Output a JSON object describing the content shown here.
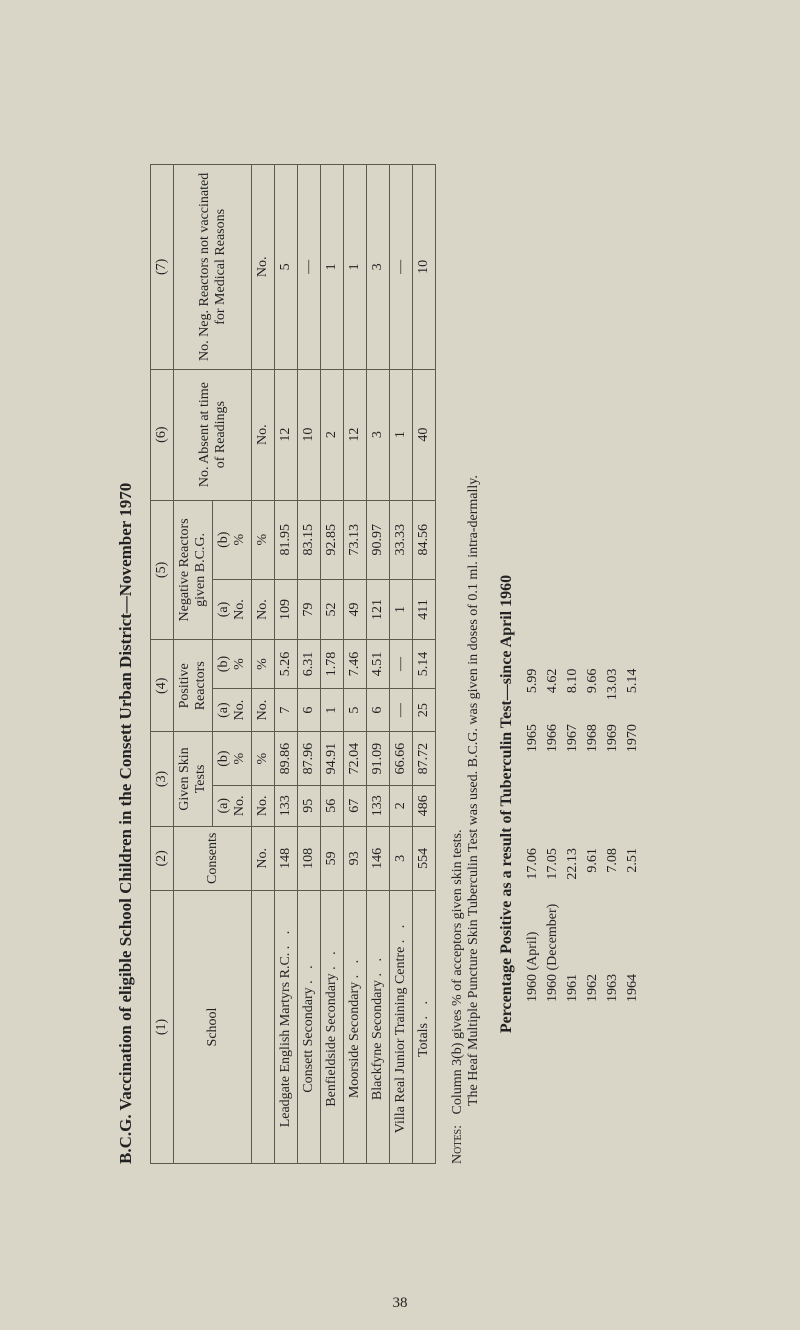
{
  "title": "B.C.G. Vaccination of eligible School Children in the Consett Urban District—November 1970",
  "headers": {
    "c1": "(1)",
    "c2": "(2)",
    "c3": "(3)",
    "c4": "(4)",
    "c5": "(5)",
    "c6": "(6)",
    "c7": "(7)",
    "school": "School",
    "consents": "Consents",
    "given": "Given Skin Tests",
    "pos": "Positive Reactors",
    "neg": "Negative Reactors given B.C.G.",
    "absent": "No. Absent at time of Readings",
    "negreact": "No. Neg. Reactors not vaccinated for Medical Reasons",
    "no": "No.",
    "pct": "%",
    "a": "(a)",
    "b": "(b)"
  },
  "rows": [
    {
      "school": "Leadgate English Martyrs R.C.",
      "consents": "148",
      "ga": "133",
      "gb": "89.86",
      "pa": "7",
      "pb": "5.26",
      "na": "109",
      "nb": "81.95",
      "abs": "12",
      "nr": "5"
    },
    {
      "school": "Consett Secondary",
      "consents": "108",
      "ga": "95",
      "gb": "87.96",
      "pa": "6",
      "pb": "6.31",
      "na": "79",
      "nb": "83.15",
      "abs": "10",
      "nr": "—"
    },
    {
      "school": "Benfieldside Secondary",
      "consents": "59",
      "ga": "56",
      "gb": "94.91",
      "pa": "1",
      "pb": "1.78",
      "na": "52",
      "nb": "92.85",
      "abs": "2",
      "nr": "1"
    },
    {
      "school": "Moorside Secondary",
      "consents": "93",
      "ga": "67",
      "gb": "72.04",
      "pa": "5",
      "pb": "7.46",
      "na": "49",
      "nb": "73.13",
      "abs": "12",
      "nr": "1"
    },
    {
      "school": "Blackfyne Secondary",
      "consents": "146",
      "ga": "133",
      "gb": "91.09",
      "pa": "6",
      "pb": "4.51",
      "na": "121",
      "nb": "90.97",
      "abs": "3",
      "nr": "3"
    },
    {
      "school": "Villa Real Junior Training Centre",
      "consents": "3",
      "ga": "2",
      "gb": "66.66",
      "pa": "—",
      "pb": "—",
      "na": "1",
      "nb": "33.33",
      "abs": "1",
      "nr": "—"
    }
  ],
  "totals": {
    "label": "Totals",
    "consents": "554",
    "ga": "486",
    "gb": "87.72",
    "pa": "25",
    "pb": "5.14",
    "na": "411",
    "nb": "84.56",
    "abs": "40",
    "nr": "10"
  },
  "notes": {
    "label": "Notes:",
    "n1": "Column 3(b) gives % of acceptors given skin tests.",
    "n2": "The Heaf Multiple Puncture Skin Tuberculin Test was used. B.C.G. was given in doses of 0.1 ml. intra-dermally."
  },
  "pct_title": "Percentage Positive as a result of Tuberculin Test—since April 1960",
  "pct_left": [
    [
      "1960 (April)",
      "17.06"
    ],
    [
      "1960 (December)",
      "17.05"
    ],
    [
      "1961",
      "22.13"
    ],
    [
      "1962",
      "9.61"
    ],
    [
      "1963",
      "7.08"
    ],
    [
      "1964",
      "2.51"
    ]
  ],
  "pct_right": [
    [
      "1965",
      "5.99"
    ],
    [
      "1966",
      "4.62"
    ],
    [
      "1967",
      "8.10"
    ],
    [
      "1968",
      "9.66"
    ],
    [
      "1969",
      "13.03"
    ],
    [
      "1970",
      "5.14"
    ]
  ],
  "page_num": "38"
}
